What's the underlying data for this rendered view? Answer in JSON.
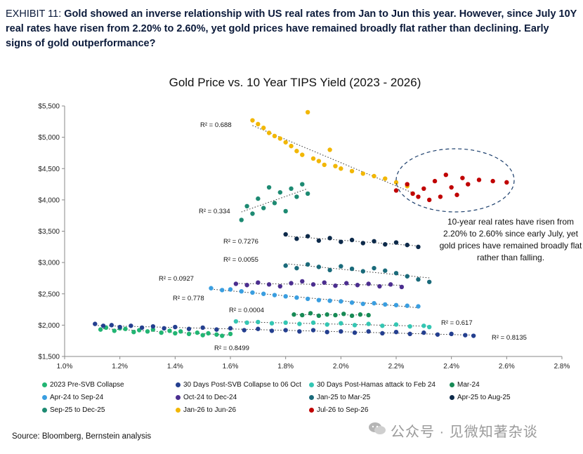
{
  "header": {
    "exhibit_label": "EXHIBIT 11:",
    "line1_bold": "Gold showed an inverse relationship with US real rates from Jan to Jun this year. However, since July 10Y",
    "line2": "real rates have risen from 2.20% to 2.60%, yet gold prices have remained broadly flat rather than declining. Early",
    "line3": "signs of gold outperformance?"
  },
  "annotation": "10-year real rates have risen from 2.20% to 2.60% since early July, yet gold prices have remained broadly flat rather than falling.",
  "source": "Source: Bloomberg, Bernstein analysis",
  "watermark": "公众号 · 见微知著杂谈",
  "watermark_icon": "wechat-official-account-icon",
  "colors": {
    "S1": "#22b573",
    "S2": "#243f8f",
    "S3": "#34c6b3",
    "S4": "#178a55",
    "S5": "#3a9ee0",
    "S6": "#4b2e8f",
    "S7": "#1a6a7a",
    "S8": "#0d2a4a",
    "S9": "#1d8a72",
    "S10": "#f2b705",
    "S11": "#c00000"
  },
  "chart_data": {
    "type": "scatter",
    "title": "Gold Price vs. 10 Year TIPS Yield (2023 - 2026)",
    "xlabel": "",
    "ylabel": "",
    "xlim": [
      1.0,
      2.8
    ],
    "ylim": [
      1500,
      5500
    ],
    "x_ticks": [
      "1.0%",
      "1.2%",
      "1.4%",
      "1.6%",
      "1.8%",
      "2.0%",
      "2.2%",
      "2.4%",
      "2.6%",
      "2.8%"
    ],
    "y_ticks": [
      "$1,500",
      "$2,000",
      "$2,500",
      "$3,000",
      "$3,500",
      "$4,000",
      "$4,500",
      "$5,000",
      "$5,500"
    ],
    "grid": false,
    "legend_position": "bottom",
    "series": [
      {
        "id": "S1",
        "name": "2023 Pre-SVB Collapse",
        "r2": "R² = 0.8499",
        "points": [
          [
            1.13,
            1930
          ],
          [
            1.15,
            1960
          ],
          [
            1.18,
            1910
          ],
          [
            1.2,
            1950
          ],
          [
            1.22,
            1940
          ],
          [
            1.25,
            1890
          ],
          [
            1.27,
            1920
          ],
          [
            1.3,
            1900
          ],
          [
            1.32,
            1930
          ],
          [
            1.35,
            1880
          ],
          [
            1.38,
            1910
          ],
          [
            1.4,
            1870
          ],
          [
            1.42,
            1900
          ],
          [
            1.45,
            1860
          ],
          [
            1.48,
            1880
          ],
          [
            1.5,
            1840
          ],
          [
            1.52,
            1870
          ],
          [
            1.55,
            1850
          ],
          [
            1.57,
            1830
          ],
          [
            1.6,
            1860
          ]
        ]
      },
      {
        "id": "S2",
        "name": "30 Days Post-SVB Collapse to 06 Oct",
        "r2": "R² = 0.8135",
        "points": [
          [
            1.11,
            2020
          ],
          [
            1.14,
            1990
          ],
          [
            1.17,
            2000
          ],
          [
            1.2,
            1970
          ],
          [
            1.24,
            1990
          ],
          [
            1.28,
            1960
          ],
          [
            1.32,
            1980
          ],
          [
            1.36,
            1950
          ],
          [
            1.4,
            1970
          ],
          [
            1.45,
            1940
          ],
          [
            1.5,
            1960
          ],
          [
            1.55,
            1930
          ],
          [
            1.6,
            1950
          ],
          [
            1.65,
            1920
          ],
          [
            1.7,
            1940
          ],
          [
            1.75,
            1910
          ],
          [
            1.8,
            1920
          ],
          [
            1.85,
            1900
          ],
          [
            1.9,
            1920
          ],
          [
            1.95,
            1890
          ],
          [
            2.0,
            1900
          ],
          [
            2.05,
            1880
          ],
          [
            2.1,
            1900
          ],
          [
            2.15,
            1870
          ],
          [
            2.2,
            1890
          ],
          [
            2.25,
            1860
          ],
          [
            2.3,
            1880
          ],
          [
            2.35,
            1850
          ],
          [
            2.4,
            1860
          ],
          [
            2.45,
            1840
          ],
          [
            2.48,
            1830
          ]
        ]
      },
      {
        "id": "S3",
        "name": "30 Days Post-Hamas attack to Feb 24",
        "r2": "R² = 0.617",
        "points": [
          [
            1.62,
            2060
          ],
          [
            1.66,
            2040
          ],
          [
            1.7,
            2050
          ],
          [
            1.75,
            2030
          ],
          [
            1.8,
            2040
          ],
          [
            1.85,
            2020
          ],
          [
            1.9,
            2040
          ],
          [
            1.95,
            2010
          ],
          [
            2.0,
            2030
          ],
          [
            2.05,
            2000
          ],
          [
            2.1,
            2020
          ],
          [
            2.15,
            1990
          ],
          [
            2.2,
            2010
          ],
          [
            2.25,
            1980
          ],
          [
            2.3,
            1990
          ],
          [
            2.32,
            1970
          ]
        ]
      },
      {
        "id": "S4",
        "name": "Mar-24",
        "r2": "R² = 0.0004",
        "points": [
          [
            1.83,
            2170
          ],
          [
            1.86,
            2160
          ],
          [
            1.89,
            2190
          ],
          [
            1.92,
            2150
          ],
          [
            1.95,
            2170
          ],
          [
            1.98,
            2160
          ],
          [
            2.01,
            2180
          ],
          [
            2.04,
            2150
          ],
          [
            2.07,
            2170
          ],
          [
            2.1,
            2160
          ]
        ]
      },
      {
        "id": "S5",
        "name": "Apr-24 to Sep-24",
        "r2": "R² = 0.778",
        "points": [
          [
            1.53,
            2590
          ],
          [
            1.57,
            2560
          ],
          [
            1.6,
            2570
          ],
          [
            1.64,
            2540
          ],
          [
            1.68,
            2520
          ],
          [
            1.72,
            2500
          ],
          [
            1.76,
            2480
          ],
          [
            1.8,
            2460
          ],
          [
            1.84,
            2440
          ],
          [
            1.88,
            2420
          ],
          [
            1.92,
            2400
          ],
          [
            1.96,
            2390
          ],
          [
            2.0,
            2380
          ],
          [
            2.04,
            2360
          ],
          [
            2.08,
            2340
          ],
          [
            2.12,
            2350
          ],
          [
            2.16,
            2330
          ],
          [
            2.2,
            2320
          ],
          [
            2.24,
            2310
          ],
          [
            2.28,
            2300
          ]
        ]
      },
      {
        "id": "S6",
        "name": "Oct-24 to Dec-24",
        "r2": "R² = 0.0927",
        "points": [
          [
            1.62,
            2660
          ],
          [
            1.66,
            2640
          ],
          [
            1.7,
            2680
          ],
          [
            1.74,
            2650
          ],
          [
            1.78,
            2620
          ],
          [
            1.82,
            2670
          ],
          [
            1.86,
            2700
          ],
          [
            1.9,
            2650
          ],
          [
            1.94,
            2680
          ],
          [
            1.98,
            2630
          ],
          [
            2.02,
            2670
          ],
          [
            2.06,
            2640
          ],
          [
            2.1,
            2660
          ],
          [
            2.14,
            2620
          ],
          [
            2.18,
            2650
          ],
          [
            2.22,
            2610
          ]
        ]
      },
      {
        "id": "S7",
        "name": "Jan-25 to Mar-25",
        "r2": "R² = 0.0055",
        "points": [
          [
            1.8,
            2950
          ],
          [
            1.84,
            2910
          ],
          [
            1.88,
            2970
          ],
          [
            1.92,
            2930
          ],
          [
            1.96,
            2880
          ],
          [
            2.0,
            2940
          ],
          [
            2.04,
            2900
          ],
          [
            2.08,
            2860
          ],
          [
            2.12,
            2910
          ],
          [
            2.16,
            2870
          ],
          [
            2.2,
            2830
          ],
          [
            2.24,
            2780
          ],
          [
            2.28,
            2730
          ],
          [
            2.32,
            2690
          ]
        ]
      },
      {
        "id": "S8",
        "name": "Apr-25 to Aug-25",
        "r2": "R² = 0.7276",
        "points": [
          [
            1.8,
            3450
          ],
          [
            1.84,
            3380
          ],
          [
            1.88,
            3420
          ],
          [
            1.92,
            3350
          ],
          [
            1.96,
            3390
          ],
          [
            2.0,
            3330
          ],
          [
            2.04,
            3360
          ],
          [
            2.08,
            3310
          ],
          [
            2.12,
            3340
          ],
          [
            2.16,
            3290
          ],
          [
            2.2,
            3320
          ],
          [
            2.24,
            3280
          ],
          [
            2.28,
            3250
          ]
        ]
      },
      {
        "id": "S9",
        "name": "Sep-25 to Dec-25",
        "r2": "R² = 0.334",
        "points": [
          [
            1.64,
            3680
          ],
          [
            1.66,
            3900
          ],
          [
            1.68,
            3780
          ],
          [
            1.7,
            4020
          ],
          [
            1.72,
            3870
          ],
          [
            1.74,
            4200
          ],
          [
            1.76,
            3950
          ],
          [
            1.78,
            4120
          ],
          [
            1.8,
            3820
          ],
          [
            1.82,
            4180
          ],
          [
            1.84,
            4050
          ],
          [
            1.86,
            4250
          ],
          [
            1.88,
            4100
          ]
        ]
      },
      {
        "id": "S10",
        "name": "Jan-26 to Jun-26",
        "r2": "R² = 0.688",
        "points": [
          [
            1.68,
            5270
          ],
          [
            1.7,
            5210
          ],
          [
            1.72,
            5150
          ],
          [
            1.74,
            5070
          ],
          [
            1.76,
            5020
          ],
          [
            1.78,
            4980
          ],
          [
            1.8,
            4920
          ],
          [
            1.82,
            4860
          ],
          [
            1.84,
            4780
          ],
          [
            1.86,
            4720
          ],
          [
            1.88,
            5400
          ],
          [
            1.9,
            4660
          ],
          [
            1.92,
            4620
          ],
          [
            1.94,
            4560
          ],
          [
            1.96,
            4800
          ],
          [
            1.98,
            4540
          ],
          [
            2.0,
            4500
          ],
          [
            2.04,
            4460
          ],
          [
            2.08,
            4420
          ],
          [
            2.12,
            4380
          ],
          [
            2.16,
            4340
          ],
          [
            2.2,
            4280
          ],
          [
            2.24,
            4220
          ],
          [
            2.26,
            4100
          ]
        ]
      },
      {
        "id": "S11",
        "name": "Jul-26 to Sep-26",
        "r2": "",
        "points": [
          [
            2.2,
            4150
          ],
          [
            2.24,
            4250
          ],
          [
            2.26,
            4100
          ],
          [
            2.28,
            4050
          ],
          [
            2.3,
            4180
          ],
          [
            2.32,
            4000
          ],
          [
            2.34,
            4300
          ],
          [
            2.36,
            4050
          ],
          [
            2.38,
            4400
          ],
          [
            2.4,
            4200
          ],
          [
            2.42,
            4080
          ],
          [
            2.44,
            4350
          ],
          [
            2.46,
            4250
          ],
          [
            2.5,
            4320
          ],
          [
            2.55,
            4300
          ],
          [
            2.6,
            4280
          ]
        ]
      }
    ]
  }
}
